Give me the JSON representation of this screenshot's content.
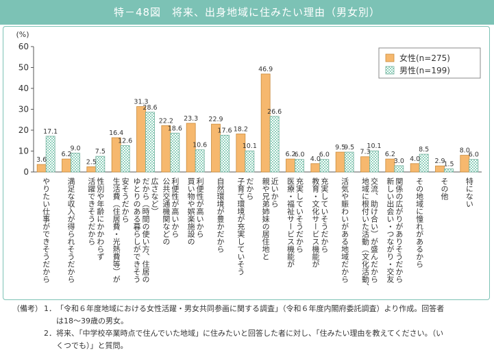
{
  "header": {
    "title": "特－48図　将来、出身地域に住みたい理由（男女別）"
  },
  "chart_data": {
    "type": "bar",
    "ylabel": "(%)",
    "ylim": [
      0,
      60
    ],
    "yticks": [
      0,
      10,
      20,
      30,
      40,
      50,
      60
    ],
    "grid": false,
    "legend_position": "top-right",
    "categories": [
      "やりたい仕事ができそうだから",
      "満足な収入が得られそうだから",
      "性別や年齢にかかわらず活躍できそうだから",
      "安そうだから生活費（住居費・光熱費等）が",
      "ゆとりのある暮らしができそうだから（時間の使い方、住居の広さなど）",
      "公共交通機関などの利便性が高いから",
      "買い物や娯楽施設の利便性が高いから",
      "自然環境が豊かだから",
      "子育て環境が充実していそうだから",
      "親や兄弟姉妹の居住地と近いから",
      "医療・福祉サービス機能が充実していそうだから",
      "教育・文化サービス機能が充実していそうだから",
      "活気や賑わいがある地域だから",
      "地域に根付いた活動（文化活動、交流、助け合い）が盛んだから",
      "新しい出会い・つながり・交友関係の広がりがありそうだから",
      "その地域に憧れがあるから",
      "その他",
      "特にない"
    ],
    "category_lines": [
      [
        "やりたい仕事ができそうだから"
      ],
      [
        "満足な収入が得られそうだから"
      ],
      [
        "性別や年齢にかかわらず",
        "活躍できそうだから"
      ],
      [
        "安そうだから",
        "生活費（住居費・光熱費等）が"
      ],
      [
        "広さなど）",
        "だから（時間の使い方、住居の",
        "ゆとりのある暮らしができそう"
      ],
      [
        "利便性が高いから",
        "公共交通機関などの"
      ],
      [
        "利便性が高いから",
        "買い物や娯楽施設の"
      ],
      [
        "自然環境が豊かだから"
      ],
      [
        "だから",
        "子育て環境が充実していそう"
      ],
      [
        "近いから",
        "親や兄弟姉妹の居住地と"
      ],
      [
        "充実していそうだから",
        "医療・福祉サービス機能が"
      ],
      [
        "充実していそうだから",
        "教育・文化サービス機能が"
      ],
      [
        "活気や賑わいがある地域だから"
      ],
      [
        "交流、助け合い）が盛んだから",
        "地域に根付いた活動（文化活動、"
      ],
      [
        "関係の広がりがありそうだから",
        "新しい出会い・つながり・交友"
      ],
      [
        "その地域に憧れがあるから"
      ],
      [
        "その他"
      ],
      [
        "特にない"
      ]
    ],
    "series": [
      {
        "name": "女性(n=275)",
        "color": "#f6b86e",
        "values": [
          3.6,
          6.2,
          2.5,
          16.4,
          31.3,
          22.2,
          23.3,
          22.9,
          18.2,
          46.9,
          6.2,
          4.0,
          9.5,
          7.3,
          6.2,
          4.0,
          2.9,
          8.0
        ]
      },
      {
        "name": "男性(n=199)",
        "color": "#b8e0d2",
        "pattern": "checker",
        "values": [
          17.1,
          9.0,
          7.5,
          12.6,
          28.6,
          18.6,
          10.6,
          17.6,
          10.1,
          26.6,
          6.0,
          6.0,
          9.5,
          10.1,
          3.0,
          8.5,
          1.5,
          6.0
        ]
      }
    ]
  },
  "notes": {
    "label": "（備考）",
    "items": [
      {
        "num": "1．",
        "lines": [
          "「令和６年度地域における女性活躍・男女共同参画に関する調査」（令和６年度内閣府委託調査）より作成。回答者",
          "は18～39歳の男女。"
        ]
      },
      {
        "num": "2．",
        "lines": [
          "将来、「中学校卒業時点で住んでいた地域」に住みたいと回答した者に対し、「住みたい理由を教えてください。（い",
          "くつでも）」と質問。"
        ]
      }
    ]
  }
}
